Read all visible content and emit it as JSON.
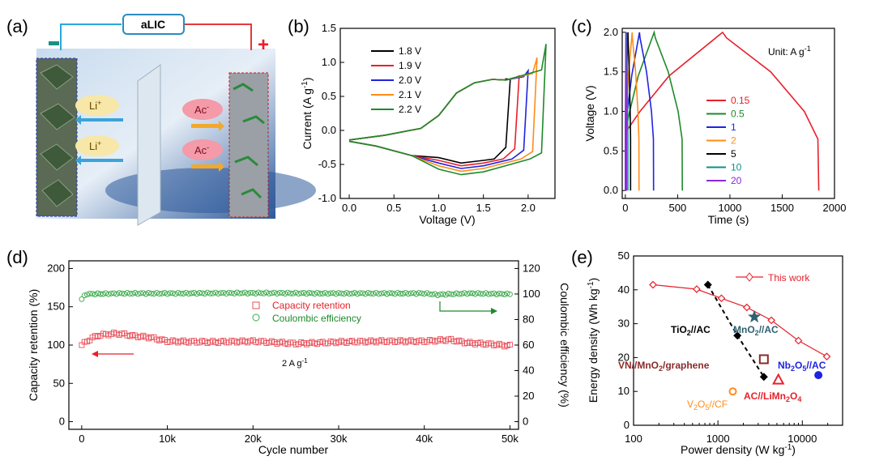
{
  "panels": {
    "a": {
      "letter": "(a)",
      "device_label": "aLIC",
      "minus": "−",
      "plus": "+",
      "ion_li": "Li",
      "ion_li_sup": "+",
      "ion_ac": "Ac",
      "ion_ac_sup": "-"
    },
    "b": {
      "letter": "(b)"
    },
    "c": {
      "letter": "(c)",
      "unit_note": "Unit: A g",
      "unit_sup": "-1"
    },
    "d": {
      "letter": "(d)",
      "rate_note": "2 A g",
      "rate_sup": "-1"
    },
    "e": {
      "letter": "(e)"
    }
  },
  "colors": {
    "black": "#000000",
    "red": "#e8202a",
    "blue": "#1f24e0",
    "orange": "#ff8c1a",
    "green": "#1e8a2a",
    "teal": "#0e8f8a",
    "purple": "#8c28e0",
    "darkred": "#8b2a2a",
    "steel": "#2f6070",
    "ret": "#e8505a",
    "ce": "#3aa84a"
  },
  "chart_data": [
    {
      "panel": "b",
      "type": "line",
      "xlabel": "Voltage (V)",
      "ylabel": "Current (A g",
      "ylabel_sup": "-1",
      "ylabel_end": ")",
      "xlim": [
        -0.1,
        2.3
      ],
      "ylim": [
        -1.0,
        1.5
      ],
      "xticks": [
        "0.0",
        "0.5",
        "1.0",
        "1.5",
        "2.0"
      ],
      "yticks": [
        "-1.0",
        "-0.5",
        "0.0",
        "0.5",
        "1.0",
        "1.5"
      ],
      "series": [
        {
          "name": "1.8 V",
          "color": "#000000",
          "vmax": 1.8,
          "imax": 0.75,
          "imin": -0.48
        },
        {
          "name": "1.9 V",
          "color": "#e8202a",
          "vmax": 1.9,
          "imax": 0.8,
          "imin": -0.52
        },
        {
          "name": "2.0 V",
          "color": "#1f24e0",
          "vmax": 2.0,
          "imax": 0.88,
          "imin": -0.56
        },
        {
          "name": "2.1 V",
          "color": "#ff8c1a",
          "vmax": 2.1,
          "imax": 1.07,
          "imin": -0.6
        },
        {
          "name": "2.2 V",
          "color": "#1e8a2a",
          "vmax": 2.2,
          "imax": 1.27,
          "imin": -0.65
        }
      ]
    },
    {
      "panel": "c",
      "type": "line",
      "xlabel": "Time (s)",
      "ylabel": "Voltage (V)",
      "xlim": [
        -30,
        2000
      ],
      "ylim": [
        -0.1,
        2.05
      ],
      "xticks": [
        "0",
        "500",
        "1000",
        "1500",
        "2000"
      ],
      "yticks": [
        "0.0",
        "0.5",
        "1.0",
        "1.5",
        "2.0"
      ],
      "series": [
        {
          "name": "0.15",
          "color": "#e8202a",
          "t_peak": 930,
          "t_end": 1850
        },
        {
          "name": "0.5",
          "color": "#1e8a2a",
          "t_peak": 275,
          "t_end": 545
        },
        {
          "name": "1",
          "color": "#1f24e0",
          "t_peak": 135,
          "t_end": 270
        },
        {
          "name": "2",
          "color": "#ff8c1a",
          "t_peak": 65,
          "t_end": 130
        },
        {
          "name": "5",
          "color": "#000000",
          "t_peak": 25,
          "t_end": 50
        },
        {
          "name": "10",
          "color": "#0e8f8a",
          "t_peak": 12,
          "t_end": 24
        },
        {
          "name": "20",
          "color": "#8c28e0",
          "t_peak": 5,
          "t_end": 10
        }
      ]
    },
    {
      "panel": "d",
      "type": "scatter",
      "xlabel": "Cycle number",
      "ylabel": "Capacity retention (%)",
      "y2label": "Coulombic efficiency (%)",
      "xlim": [
        -1500,
        51000
      ],
      "ylim": [
        -10,
        210
      ],
      "y2lim": [
        -6,
        126
      ],
      "xticks": [
        "0",
        "10k",
        "20k",
        "30k",
        "40k",
        "50k"
      ],
      "yticks": [
        "0",
        "50",
        "100",
        "150",
        "200"
      ],
      "y2ticks": [
        "0",
        "20",
        "40",
        "60",
        "80",
        "100",
        "120"
      ],
      "series": [
        {
          "name": "Capacity retention",
          "color": "#e8505a",
          "x": [
            0,
            1000,
            2000,
            3000,
            4000,
            5000,
            6000,
            7000,
            8000,
            10000,
            15000,
            20000,
            25000,
            28000,
            30000,
            35000,
            40000,
            43000,
            45000,
            48000,
            50000
          ],
          "y": [
            100,
            108,
            113,
            114,
            115,
            114,
            112,
            111,
            110,
            105,
            104,
            105,
            102,
            103,
            104,
            105,
            105,
            107,
            103,
            101,
            99
          ]
        },
        {
          "name": "Coulombic efficiency",
          "color": "#3aa84a",
          "x": [
            0,
            500,
            5000,
            10000,
            20000,
            30000,
            40000,
            41500,
            45000,
            50000
          ],
          "y": [
            96,
            100,
            100.5,
            100.5,
            100.8,
            100.5,
            100.5,
            99.5,
            100.5,
            100
          ]
        }
      ]
    },
    {
      "panel": "e",
      "type": "scatter",
      "xlabel": "Power density (W kg",
      "xlabel_sup": "-1",
      "xlabel_end": ")",
      "ylabel": "Energy density (Wh kg",
      "ylabel_sup": "-1",
      "ylabel_end": ")",
      "xscale": "log",
      "xlim": [
        100,
        30000
      ],
      "ylim": [
        0,
        50
      ],
      "xticks": [
        "100",
        "1000",
        "10000"
      ],
      "yticks": [
        "0",
        "10",
        "20",
        "30",
        "40",
        "50"
      ],
      "legend": "This work",
      "series": [
        {
          "name": "This work",
          "color": "#e8202a",
          "marker": "diamond-open",
          "x": [
            170,
            560,
            1100,
            2200,
            4300,
            9000,
            19500
          ],
          "y": [
            41.5,
            40.2,
            37.5,
            34.8,
            31.0,
            25.0,
            20.3
          ]
        },
        {
          "name": "TiO2//AC",
          "color": "#000000",
          "marker": "diamond",
          "x": [
            760,
            1700,
            3500
          ],
          "y": [
            41.5,
            26.5,
            14.3
          ]
        },
        {
          "name": "MnO2//AC",
          "color": "#2f6070",
          "marker": "star",
          "x": [
            2700
          ],
          "y": [
            32
          ]
        },
        {
          "name": "VN//MnO2/graphene",
          "color": "#8b2a2a",
          "marker": "square-open",
          "x": [
            3500
          ],
          "y": [
            19.5
          ]
        },
        {
          "name": "Nb2O5//AC",
          "color": "#1f24e0",
          "marker": "circle",
          "x": [
            15500
          ],
          "y": [
            14.8
          ]
        },
        {
          "name": "AC//LiMn2O4",
          "color": "#e8202a",
          "marker": "triangle-open",
          "x": [
            5200
          ],
          "y": [
            13.5
          ]
        },
        {
          "name": "V2O5//CF",
          "color": "#ff8c1a",
          "marker": "circle-open",
          "x": [
            1500
          ],
          "y": [
            10
          ]
        }
      ]
    }
  ]
}
